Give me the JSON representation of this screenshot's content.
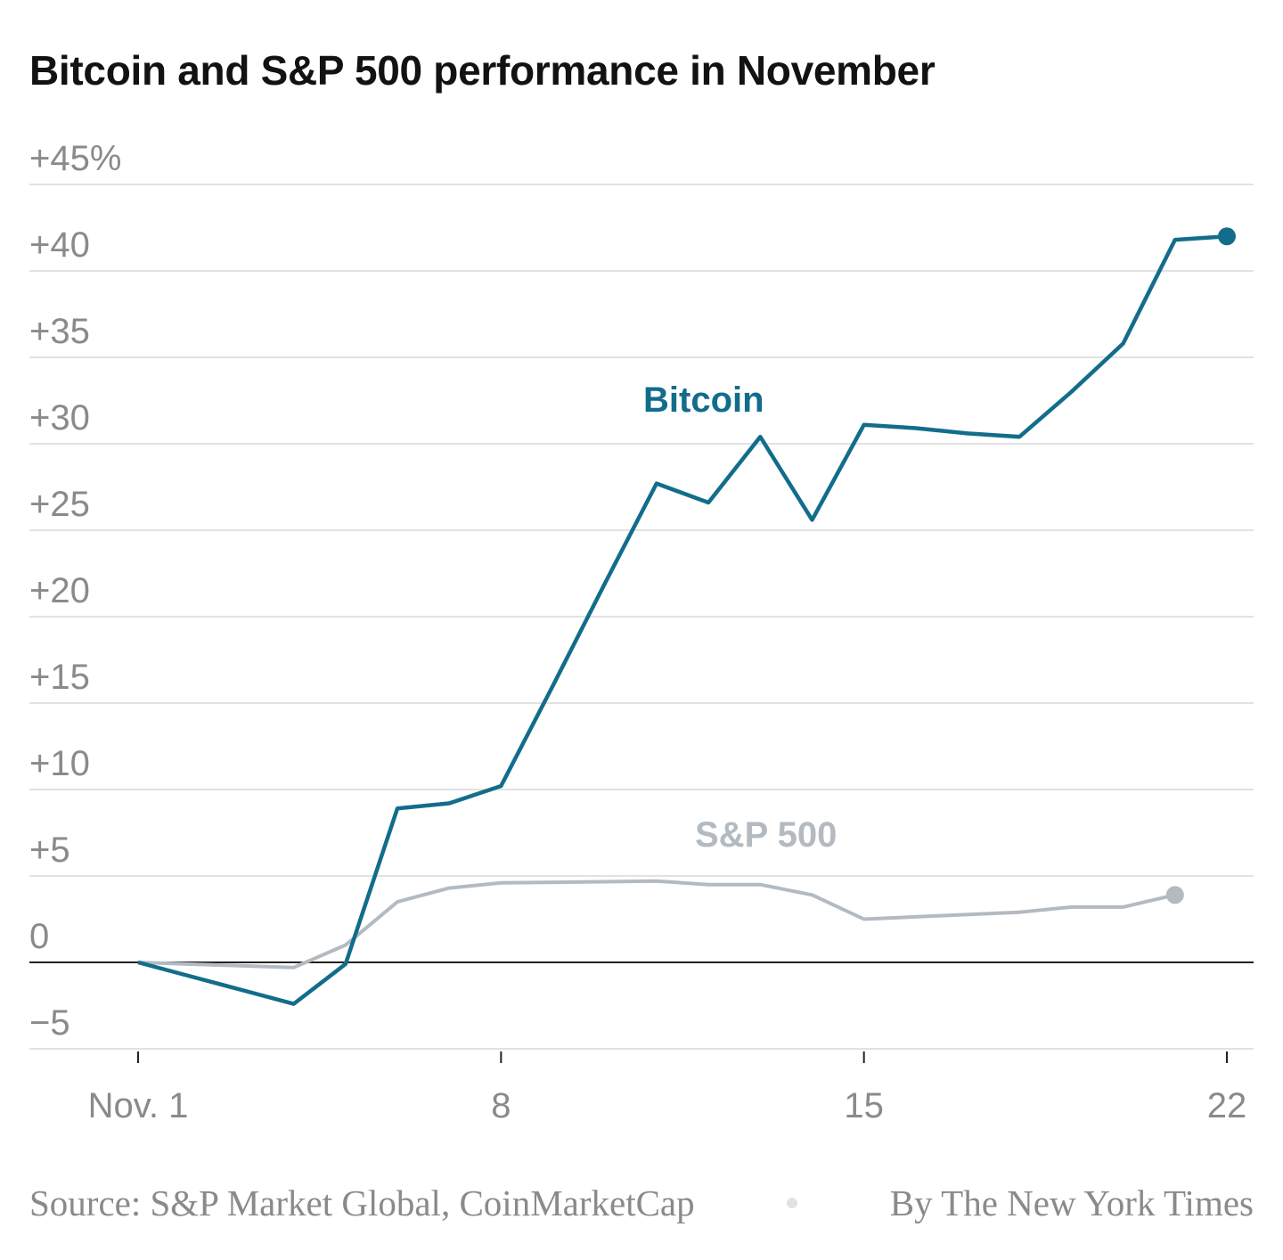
{
  "chart_data": {
    "type": "line",
    "title": "Bitcoin and S&P 500 performance in November",
    "xlabel": "",
    "ylabel": "",
    "x_ticks": [
      {
        "day": 1,
        "label": "Nov. 1"
      },
      {
        "day": 8,
        "label": "8"
      },
      {
        "day": 15,
        "label": "15"
      },
      {
        "day": 22,
        "label": "22"
      }
    ],
    "y_ticks": [
      {
        "value": 45,
        "label": "+45%"
      },
      {
        "value": 40,
        "label": "+40"
      },
      {
        "value": 35,
        "label": "+35"
      },
      {
        "value": 30,
        "label": "+30"
      },
      {
        "value": 25,
        "label": "+25"
      },
      {
        "value": 20,
        "label": "+20"
      },
      {
        "value": 15,
        "label": "+15"
      },
      {
        "value": 10,
        "label": "+10"
      },
      {
        "value": 5,
        "label": "+5"
      },
      {
        "value": 0,
        "label": "0"
      },
      {
        "value": -5,
        "label": "−5"
      }
    ],
    "xlim": [
      1,
      22
    ],
    "ylim": [
      -5,
      45
    ],
    "grid": true,
    "series": [
      {
        "name": "Bitcoin",
        "color": "#126d8b",
        "x": [
          1,
          2,
          3,
          4,
          5,
          6,
          7,
          8,
          9,
          10,
          11,
          12,
          13,
          14,
          15,
          16,
          17,
          18,
          19,
          20,
          21,
          22
        ],
        "y": [
          0,
          -0.8,
          -1.6,
          -2.4,
          -0.1,
          8.9,
          9.2,
          10.2,
          16.0,
          21.9,
          27.7,
          26.6,
          30.4,
          25.6,
          31.1,
          30.9,
          30.6,
          30.4,
          33.0,
          35.8,
          41.8,
          42.0
        ]
      },
      {
        "name": "S&P 500",
        "color": "#b3bac0",
        "x": [
          1,
          4,
          5,
          6,
          7,
          8,
          11,
          12,
          13,
          14,
          15,
          18,
          19,
          20,
          21
        ],
        "y": [
          0,
          -0.3,
          1.0,
          3.5,
          4.3,
          4.6,
          4.7,
          4.5,
          4.5,
          3.9,
          2.5,
          2.9,
          3.2,
          3.2,
          3.9
        ]
      }
    ]
  },
  "footer": {
    "source": "Source: S&P Market Global, CoinMarketCap",
    "credit": "By The New York Times"
  }
}
